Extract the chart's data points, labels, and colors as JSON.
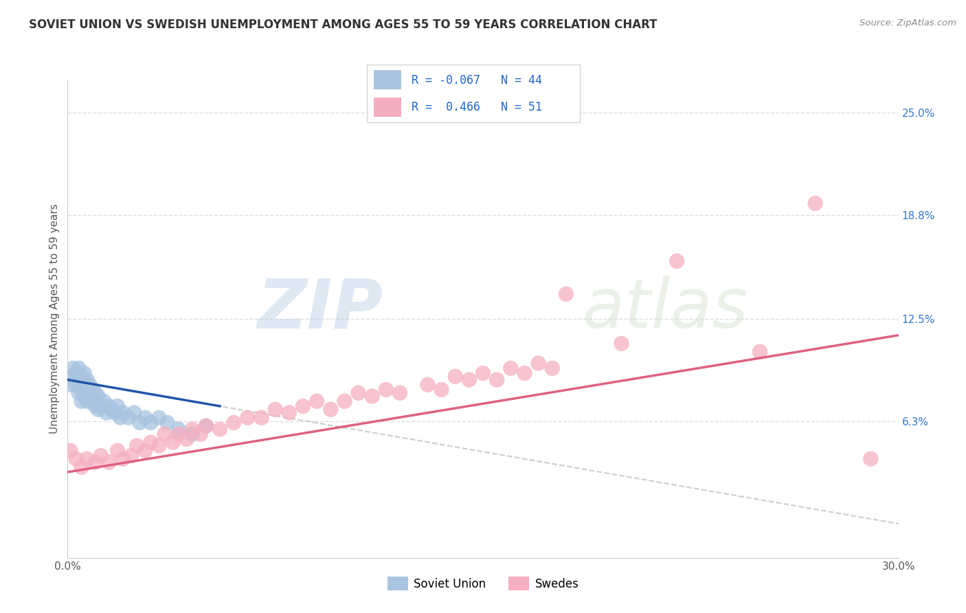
{
  "title": "SOVIET UNION VS SWEDISH UNEMPLOYMENT AMONG AGES 55 TO 59 YEARS CORRELATION CHART",
  "source": "Source: ZipAtlas.com",
  "ylabel": "Unemployment Among Ages 55 to 59 years",
  "xlim": [
    0.0,
    0.3
  ],
  "ylim": [
    -0.02,
    0.27
  ],
  "right_yticks": [
    0.063,
    0.125,
    0.188,
    0.25
  ],
  "right_yticklabels": [
    "6.3%",
    "12.5%",
    "18.8%",
    "25.0%"
  ],
  "color_soviet": "#a8c4e0",
  "color_swedish": "#f5afc0",
  "line_color_soviet": "#2255aa",
  "line_color_swedish": "#e06080",
  "line_color_dashed": "#cccccc",
  "background_color": "#ffffff",
  "grid_color": "#dddddd",
  "soviet_scatter_x": [
    0.001,
    0.002,
    0.002,
    0.003,
    0.003,
    0.004,
    0.004,
    0.004,
    0.005,
    0.005,
    0.005,
    0.006,
    0.006,
    0.006,
    0.007,
    0.007,
    0.007,
    0.008,
    0.008,
    0.009,
    0.009,
    0.01,
    0.01,
    0.011,
    0.011,
    0.012,
    0.013,
    0.014,
    0.015,
    0.016,
    0.017,
    0.018,
    0.019,
    0.02,
    0.022,
    0.024,
    0.026,
    0.028,
    0.03,
    0.033,
    0.036,
    0.04,
    0.045,
    0.05
  ],
  "soviet_scatter_y": [
    0.085,
    0.09,
    0.095,
    0.085,
    0.092,
    0.08,
    0.088,
    0.095,
    0.075,
    0.082,
    0.09,
    0.078,
    0.085,
    0.092,
    0.075,
    0.082,
    0.088,
    0.078,
    0.085,
    0.075,
    0.082,
    0.072,
    0.08,
    0.07,
    0.078,
    0.072,
    0.075,
    0.068,
    0.072,
    0.07,
    0.068,
    0.072,
    0.065,
    0.068,
    0.065,
    0.068,
    0.062,
    0.065,
    0.062,
    0.065,
    0.062,
    0.058,
    0.055,
    0.06
  ],
  "swedish_scatter_x": [
    0.001,
    0.003,
    0.005,
    0.007,
    0.01,
    0.012,
    0.015,
    0.018,
    0.02,
    0.023,
    0.025,
    0.028,
    0.03,
    0.033,
    0.035,
    0.038,
    0.04,
    0.043,
    0.045,
    0.048,
    0.05,
    0.055,
    0.06,
    0.065,
    0.07,
    0.075,
    0.08,
    0.085,
    0.09,
    0.095,
    0.1,
    0.105,
    0.11,
    0.115,
    0.12,
    0.13,
    0.135,
    0.14,
    0.145,
    0.15,
    0.155,
    0.16,
    0.165,
    0.17,
    0.175,
    0.18,
    0.2,
    0.22,
    0.25,
    0.27,
    0.29
  ],
  "swedish_scatter_y": [
    0.045,
    0.04,
    0.035,
    0.04,
    0.038,
    0.042,
    0.038,
    0.045,
    0.04,
    0.042,
    0.048,
    0.045,
    0.05,
    0.048,
    0.055,
    0.05,
    0.055,
    0.052,
    0.058,
    0.055,
    0.06,
    0.058,
    0.062,
    0.065,
    0.065,
    0.07,
    0.068,
    0.072,
    0.075,
    0.07,
    0.075,
    0.08,
    0.078,
    0.082,
    0.08,
    0.085,
    0.082,
    0.09,
    0.088,
    0.092,
    0.088,
    0.095,
    0.092,
    0.098,
    0.095,
    0.14,
    0.11,
    0.16,
    0.105,
    0.195,
    0.04
  ],
  "soviet_line_x0": 0.0,
  "soviet_line_x1": 0.055,
  "soviet_line_y0": 0.088,
  "soviet_line_y1": 0.072,
  "swedish_line_x0": 0.0,
  "swedish_line_x1": 0.3,
  "swedish_line_y0": 0.032,
  "swedish_line_y1": 0.115,
  "dashed_line_x0": 0.048,
  "dashed_line_x1": 0.3,
  "dashed_slope": -0.29
}
